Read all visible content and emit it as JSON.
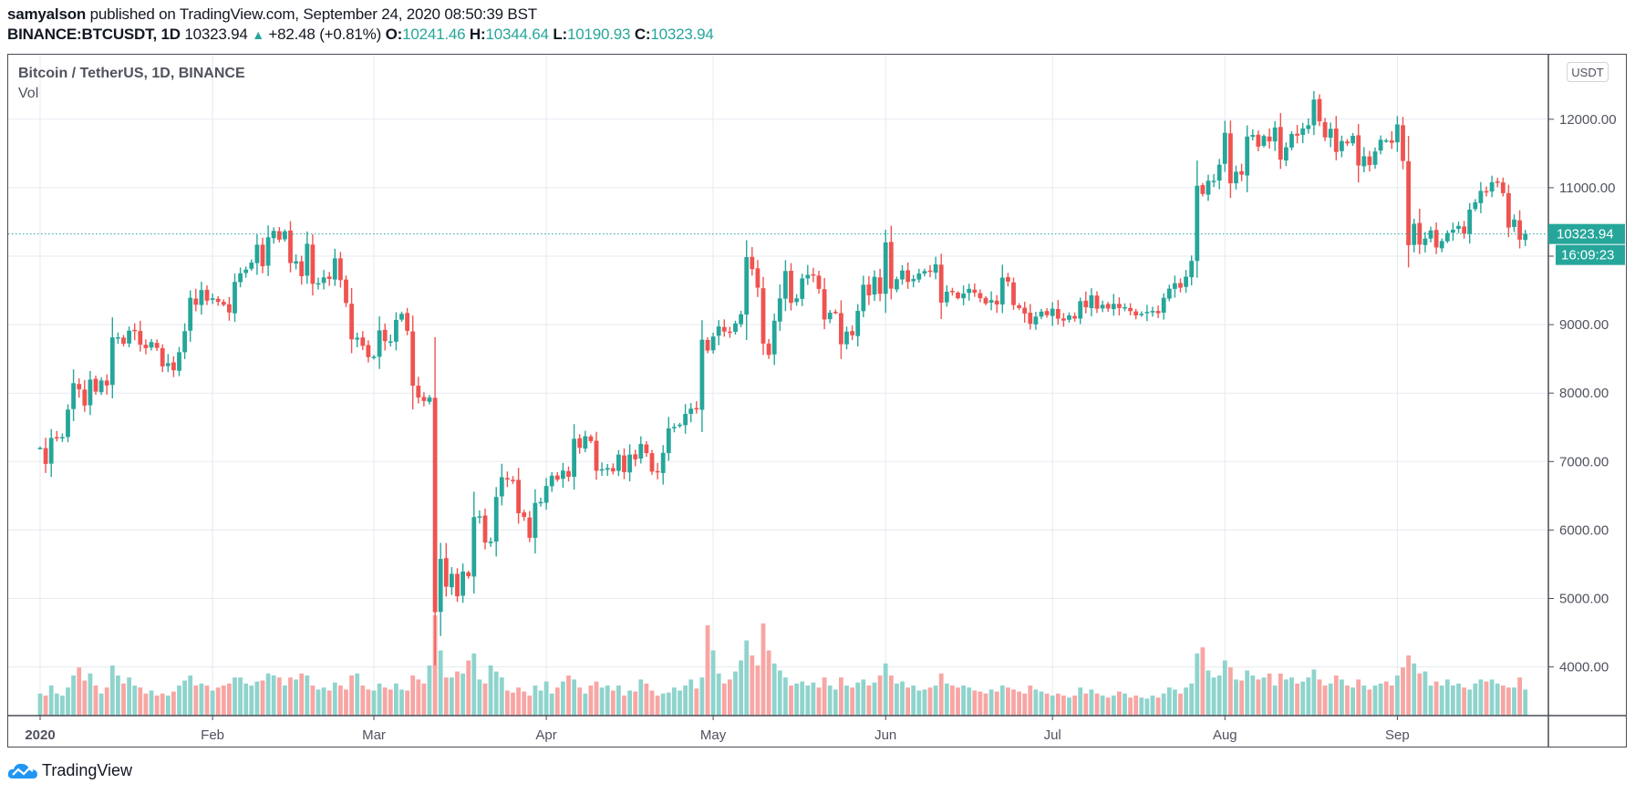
{
  "header": {
    "author": "samyalson",
    "published_text": "published on TradingView.com, September 24, 2020 08:50:39 BST",
    "symbol": "BINANCE:BTCUSDT, 1D",
    "last": "10323.94",
    "change_icon": "up-triangle-icon",
    "change": "+82.48 (+0.81%)",
    "o_label": "O:",
    "o_value": "10241.46",
    "h_label": "H:",
    "h_value": "10344.64",
    "l_label": "L:",
    "l_value": "10190.93",
    "c_label": "C:",
    "c_value": "10323.94"
  },
  "legend": {
    "title": "Bitcoin / TetherUS, 1D, BINANCE",
    "volume": "Vol"
  },
  "price_axis": {
    "currency": "USDT",
    "last_price_label": "10323.94",
    "countdown_label": "16:09:23"
  },
  "brand": {
    "name": "TradingView"
  },
  "colors": {
    "up": "#26a69a",
    "down": "#ef5350",
    "up_vol": "#8fd4cc",
    "down_vol": "#f7a6a4",
    "grid": "#e6eaf0",
    "axis": "#4a4d57"
  },
  "chart_data": {
    "type": "candlestick",
    "title": "Bitcoin / TetherUS, 1D, BINANCE",
    "xlabel": "",
    "ylabel": "USDT",
    "start_date": "2020-01-01",
    "end_date": "2020-09-24",
    "ylim": [
      3300,
      12600
    ],
    "y_ticks": [
      4000,
      5000,
      6000,
      7000,
      8000,
      9000,
      10000,
      11000,
      12000
    ],
    "y_tick_labels": [
      "4000.00",
      "5000.00",
      "6000.00",
      "7000.00",
      "8000.00",
      "9000.00",
      "10000.00",
      "11000.00",
      "12000.00"
    ],
    "x_tick_labels": [
      {
        "label": "2020",
        "day": 0
      },
      {
        "label": "Feb",
        "day": 31
      },
      {
        "label": "Mar",
        "day": 60
      },
      {
        "label": "Apr",
        "day": 91
      },
      {
        "label": "May",
        "day": 121
      },
      {
        "label": "Jun",
        "day": 152
      },
      {
        "label": "Jul",
        "day": 182
      },
      {
        "label": "Aug",
        "day": 213
      },
      {
        "label": "Sep",
        "day": 244
      }
    ],
    "grid": true,
    "last_price": 10323.94,
    "closes": [
      7200,
      6965,
      7345,
      7354,
      7358,
      7759,
      8145,
      8055,
      7818,
      8197,
      8021,
      8184,
      8111,
      8813,
      8815,
      8720,
      8911,
      8915,
      8706,
      8657,
      8745,
      8660,
      8390,
      8437,
      8333,
      8597,
      8904,
      9392,
      9290,
      9505,
      9350,
      9385,
      9332,
      9290,
      9177,
      9624,
      9750,
      9804,
      9906,
      10167,
      9853,
      10275,
      10369,
      10242,
      10363,
      9900,
      9925,
      9707,
      10181,
      9596,
      9605,
      9690,
      9667,
      9968,
      9650,
      9316,
      8785,
      8809,
      8690,
      8525,
      8531,
      8916,
      8759,
      8755,
      9069,
      9158,
      8909,
      8108,
      7935,
      7885,
      7935,
      4800,
      5578,
      5172,
      5360,
      5032,
      5393,
      5324,
      6189,
      6200,
      5816,
      5830,
      6483,
      6771,
      6737,
      6729,
      6245,
      6191,
      5886,
      6395,
      6410,
      6643,
      6793,
      6736,
      6868,
      6777,
      7333,
      7201,
      7370,
      7299,
      6865,
      6888,
      6905,
      6856,
      7101,
      6845,
      7102,
      7032,
      7257,
      7123,
      6853,
      6844,
      7127,
      7484,
      7506,
      7539,
      7696,
      7773,
      7768,
      8780,
      8621,
      8826,
      8973,
      8898,
      8886,
      9018,
      9151,
      9986,
      9811,
      9540,
      8723,
      8557,
      9057,
      9383,
      9783,
      9318,
      9384,
      9675,
      9727,
      9728,
      9522,
      9075,
      9175,
      9176,
      8713,
      8898,
      8844,
      9201,
      9582,
      9427,
      9698,
      9450,
      10200,
      9526,
      9664,
      9790,
      9623,
      9666,
      9746,
      9782,
      9771,
      9880,
      9321,
      9481,
      9475,
      9386,
      9454,
      9523,
      9465,
      9386,
      9309,
      9358,
      9294,
      9686,
      9629,
      9286,
      9243,
      9162,
      9012,
      9117,
      9190,
      9138,
      9232,
      9087,
      9059,
      9134,
      9088,
      9342,
      9253,
      9428,
      9232,
      9289,
      9235,
      9303,
      9243,
      9255,
      9197,
      9134,
      9158,
      9186,
      9200,
      9166,
      9392,
      9526,
      9604,
      9539,
      9700,
      9931,
      11029,
      10909,
      11101,
      11101,
      11336,
      11802,
      11064,
      11233,
      11190,
      11747,
      11770,
      11600,
      11755,
      11676,
      11879,
      11410,
      11590,
      11785,
      11760,
      11865,
      11912,
      12287,
      11969,
      11734,
      11860,
      11522,
      11682,
      11648,
      11758,
      11325,
      11460,
      11330,
      11530,
      11700,
      11692,
      11655,
      11924,
      11390,
      10160,
      10473,
      10170,
      10257,
      10375,
      10127,
      10221,
      10339,
      10386,
      10442,
      10328,
      10680,
      10786,
      10954,
      10940,
      11080,
      11085,
      10920,
      10418,
      10535,
      10241,
      10324
    ],
    "first_open": 7195,
    "volumes_relative": [
      0.22,
      0.2,
      0.3,
      0.22,
      0.2,
      0.28,
      0.4,
      0.48,
      0.35,
      0.42,
      0.3,
      0.22,
      0.28,
      0.5,
      0.4,
      0.32,
      0.38,
      0.3,
      0.28,
      0.22,
      0.25,
      0.2,
      0.22,
      0.2,
      0.24,
      0.3,
      0.35,
      0.4,
      0.3,
      0.32,
      0.3,
      0.25,
      0.28,
      0.3,
      0.32,
      0.38,
      0.38,
      0.32,
      0.3,
      0.34,
      0.35,
      0.42,
      0.4,
      0.38,
      0.3,
      0.38,
      0.36,
      0.42,
      0.4,
      0.3,
      0.26,
      0.28,
      0.25,
      0.33,
      0.3,
      0.26,
      0.4,
      0.42,
      0.3,
      0.26,
      0.25,
      0.32,
      0.28,
      0.26,
      0.32,
      0.26,
      0.25,
      0.4,
      0.36,
      0.32,
      0.5,
      1.0,
      0.65,
      0.38,
      0.38,
      0.44,
      0.42,
      0.55,
      0.62,
      0.36,
      0.32,
      0.5,
      0.44,
      0.38,
      0.25,
      0.23,
      0.28,
      0.24,
      0.2,
      0.3,
      0.25,
      0.34,
      0.22,
      0.28,
      0.34,
      0.4,
      0.36,
      0.28,
      0.22,
      0.3,
      0.34,
      0.28,
      0.3,
      0.25,
      0.3,
      0.2,
      0.25,
      0.24,
      0.36,
      0.32,
      0.25,
      0.2,
      0.22,
      0.23,
      0.28,
      0.25,
      0.3,
      0.36,
      0.27,
      0.38,
      0.9,
      0.65,
      0.42,
      0.32,
      0.36,
      0.44,
      0.55,
      0.75,
      0.6,
      0.5,
      0.92,
      0.65,
      0.52,
      0.45,
      0.38,
      0.3,
      0.32,
      0.34,
      0.3,
      0.33,
      0.28,
      0.38,
      0.3,
      0.26,
      0.38,
      0.3,
      0.28,
      0.33,
      0.36,
      0.3,
      0.33,
      0.4,
      0.52,
      0.4,
      0.32,
      0.34,
      0.28,
      0.3,
      0.25,
      0.26,
      0.28,
      0.3,
      0.42,
      0.32,
      0.3,
      0.28,
      0.3,
      0.28,
      0.25,
      0.24,
      0.22,
      0.26,
      0.24,
      0.3,
      0.28,
      0.26,
      0.24,
      0.22,
      0.3,
      0.26,
      0.24,
      0.22,
      0.2,
      0.22,
      0.2,
      0.18,
      0.2,
      0.28,
      0.22,
      0.26,
      0.22,
      0.2,
      0.18,
      0.2,
      0.24,
      0.22,
      0.18,
      0.2,
      0.18,
      0.17,
      0.2,
      0.18,
      0.22,
      0.28,
      0.26,
      0.22,
      0.28,
      0.32,
      0.62,
      0.68,
      0.45,
      0.38,
      0.4,
      0.55,
      0.48,
      0.36,
      0.35,
      0.45,
      0.4,
      0.36,
      0.38,
      0.42,
      0.3,
      0.42,
      0.36,
      0.38,
      0.32,
      0.34,
      0.38,
      0.46,
      0.36,
      0.3,
      0.32,
      0.4,
      0.36,
      0.3,
      0.28,
      0.36,
      0.3,
      0.26,
      0.3,
      0.32,
      0.34,
      0.3,
      0.4,
      0.48,
      0.6,
      0.52,
      0.42,
      0.44,
      0.3,
      0.34,
      0.3,
      0.36,
      0.3,
      0.32,
      0.28,
      0.26,
      0.32,
      0.36,
      0.34,
      0.36,
      0.32,
      0.3,
      0.28,
      0.28,
      0.38,
      0.26,
      0.12
    ]
  }
}
